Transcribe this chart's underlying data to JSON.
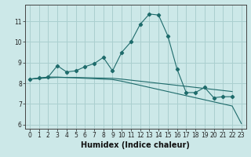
{
  "title": "",
  "xlabel": "Humidex (Indice chaleur)",
  "ylabel": "",
  "background_color": "#cce8e8",
  "grid_color": "#aacfcf",
  "line_color": "#1e6b6b",
  "x_values": [
    0,
    1,
    2,
    3,
    4,
    5,
    6,
    7,
    8,
    9,
    10,
    11,
    12,
    13,
    14,
    15,
    16,
    17,
    18,
    19,
    20,
    21,
    22,
    23
  ],
  "line1": [
    8.2,
    8.25,
    8.3,
    8.85,
    8.55,
    8.6,
    8.8,
    8.95,
    9.25,
    8.6,
    9.5,
    10.0,
    10.85,
    11.35,
    11.3,
    10.3,
    8.7,
    7.55,
    7.55,
    7.8,
    7.3,
    7.35,
    7.35,
    null
  ],
  "line2": [
    8.2,
    8.25,
    8.3,
    8.3,
    8.28,
    8.26,
    8.24,
    8.22,
    8.2,
    8.18,
    8.1,
    8.0,
    7.9,
    7.8,
    7.7,
    7.6,
    7.5,
    7.4,
    7.3,
    7.2,
    7.1,
    7.0,
    6.9,
    6.05
  ],
  "line3": [
    8.2,
    8.23,
    8.26,
    8.28,
    8.28,
    8.28,
    8.27,
    8.26,
    8.25,
    8.24,
    8.2,
    8.15,
    8.1,
    8.05,
    8.0,
    7.95,
    7.9,
    7.85,
    7.8,
    7.75,
    7.7,
    7.65,
    7.6,
    null
  ],
  "ylim": [
    5.8,
    11.8
  ],
  "xlim": [
    -0.5,
    23.5
  ],
  "yticks": [
    6,
    7,
    8,
    9,
    10,
    11
  ],
  "xticks": [
    0,
    1,
    2,
    3,
    4,
    5,
    6,
    7,
    8,
    9,
    10,
    11,
    12,
    13,
    14,
    15,
    16,
    17,
    18,
    19,
    20,
    21,
    22,
    23
  ],
  "tick_labelsize": 5.5,
  "xlabel_fontsize": 7,
  "xlabel_fontweight": "bold"
}
